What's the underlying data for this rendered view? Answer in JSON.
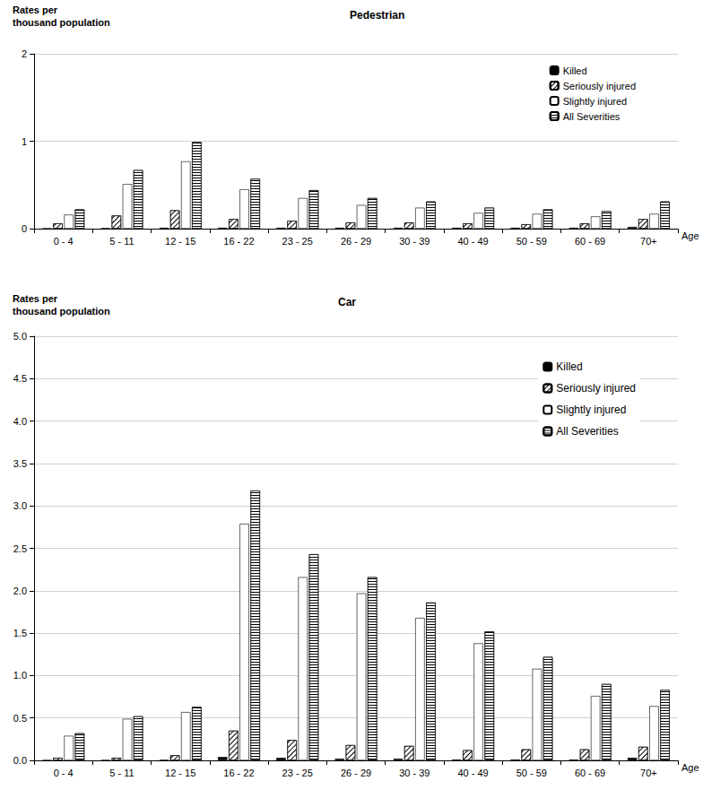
{
  "chart_data": [
    {
      "type": "bar",
      "title": "Pedestrian",
      "ylabel": "Rates per\nthousand population",
      "xlabel": "Age",
      "categories": [
        "0 - 4",
        "5 - 11",
        "12 - 15",
        "16 - 22",
        "23 - 25",
        "26 - 29",
        "30 - 39",
        "40 - 49",
        "50 - 59",
        "60 - 69",
        "70+"
      ],
      "series": [
        {
          "name": "Killed",
          "color": "#000000",
          "values": [
            0.003,
            0.005,
            0.01,
            0.01,
            0.01,
            0.01,
            0.01,
            0.01,
            0.01,
            0.01,
            0.02
          ]
        },
        {
          "name": "Seriously injured",
          "color": "#ffffff",
          "values": [
            0.06,
            0.15,
            0.21,
            0.11,
            0.09,
            0.07,
            0.07,
            0.06,
            0.05,
            0.06,
            0.11
          ]
        },
        {
          "name": "Slightly injured",
          "color": "#ffffff",
          "values": [
            0.16,
            0.51,
            0.77,
            0.45,
            0.35,
            0.27,
            0.24,
            0.18,
            0.17,
            0.14,
            0.17
          ]
        },
        {
          "name": "All Severities",
          "color": "#ffffff",
          "values": [
            0.22,
            0.67,
            0.99,
            0.57,
            0.44,
            0.35,
            0.31,
            0.24,
            0.22,
            0.2,
            0.31
          ]
        }
      ],
      "ylim": [
        0,
        2
      ],
      "yticks": [
        0,
        1,
        2
      ],
      "grid": true,
      "legend": "top-right"
    },
    {
      "type": "bar",
      "title": "Car",
      "ylabel": "Rates per\nthousand population",
      "xlabel": "Age",
      "categories": [
        "0 - 4",
        "5 - 11",
        "12 - 15",
        "16 - 22",
        "23 - 25",
        "26 - 29",
        "30 - 39",
        "40 - 49",
        "50 - 59",
        "60 - 69",
        "70+"
      ],
      "series": [
        {
          "name": "Killed",
          "color": "#000000",
          "values": [
            0.002,
            0.003,
            0.005,
            0.04,
            0.03,
            0.02,
            0.02,
            0.01,
            0.01,
            0.01,
            0.03
          ]
        },
        {
          "name": "Seriously injured",
          "color": "#ffffff",
          "values": [
            0.03,
            0.03,
            0.06,
            0.35,
            0.24,
            0.18,
            0.17,
            0.12,
            0.13,
            0.13,
            0.16
          ]
        },
        {
          "name": "Slightly injured",
          "color": "#ffffff",
          "values": [
            0.29,
            0.49,
            0.57,
            2.79,
            2.16,
            1.97,
            1.68,
            1.38,
            1.08,
            0.76,
            0.64
          ]
        },
        {
          "name": "All Severities",
          "color": "#ffffff",
          "values": [
            0.32,
            0.52,
            0.63,
            3.18,
            2.43,
            2.16,
            1.86,
            1.52,
            1.22,
            0.9,
            0.83
          ]
        }
      ],
      "ylim": [
        0,
        5
      ],
      "yticks": [
        {
          "value": 0,
          "label": "0.0"
        },
        {
          "value": 0.5,
          "label": "0.5"
        },
        {
          "value": 1,
          "label": "1.0"
        },
        {
          "value": 1.5,
          "label": "1.5"
        },
        {
          "value": 2,
          "label": "2.0"
        },
        {
          "value": 2.5,
          "label": "2.5"
        },
        {
          "value": 3,
          "label": "3.0"
        },
        {
          "value": 3.5,
          "label": "3.5"
        },
        {
          "value": 4,
          "label": "4.0"
        },
        {
          "value": 4.5,
          "label": "4.5"
        },
        {
          "value": 5,
          "label": "5.0"
        }
      ],
      "grid": true,
      "legend": "top-right"
    }
  ]
}
